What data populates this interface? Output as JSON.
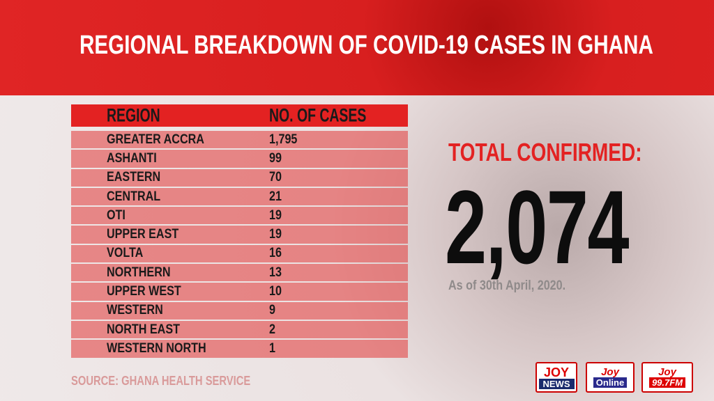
{
  "header": {
    "title": "REGIONAL BREAKDOWN OF COVID-19 CASES IN GHANA"
  },
  "table": {
    "columns": [
      "REGION",
      "NO. OF CASES"
    ],
    "rows": [
      [
        "GREATER ACCRA",
        "1,795"
      ],
      [
        "ASHANTI",
        "99"
      ],
      [
        "EASTERN",
        "70"
      ],
      [
        "CENTRAL",
        "21"
      ],
      [
        "OTI",
        "19"
      ],
      [
        "UPPER EAST",
        "19"
      ],
      [
        "VOLTA",
        "16"
      ],
      [
        "NORTHERN",
        "13"
      ],
      [
        "UPPER WEST",
        "10"
      ],
      [
        "WESTERN",
        "9"
      ],
      [
        "NORTH EAST",
        "2"
      ],
      [
        "WESTERN NORTH",
        "1"
      ]
    ]
  },
  "total": {
    "label": "TOTAL CONFIRMED:",
    "value": "2,074",
    "date": "As of 30th April, 2020."
  },
  "source": "SOURCE: GHANA HEALTH SERVICE",
  "logos": [
    {
      "top": "JOY",
      "bottom": "NEWS"
    },
    {
      "top": "Joy",
      "bottom": "Online"
    },
    {
      "top": "Joy",
      "bottom": "99.7FM"
    }
  ]
}
